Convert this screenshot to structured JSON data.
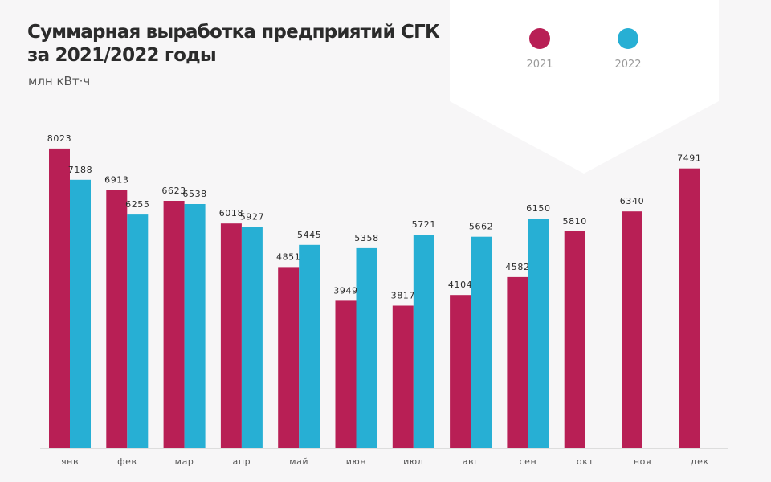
{
  "chart_data": {
    "type": "bar",
    "title": "Суммарная выработка предприятий СГК за 2021/2022 годы",
    "unit": "млн кВт·ч",
    "categories": [
      "янв",
      "фев",
      "мар",
      "апр",
      "май",
      "июн",
      "июл",
      "авг",
      "сен",
      "окт",
      "ноя",
      "дек"
    ],
    "series": [
      {
        "name": "2021",
        "color": "#b81f55",
        "values": [
          8023,
          6913,
          6623,
          6018,
          4851,
          3949,
          3817,
          4104,
          4582,
          5810,
          6340,
          7491
        ]
      },
      {
        "name": "2022",
        "color": "#27afd4",
        "values": [
          7188,
          6255,
          6538,
          5927,
          5445,
          5358,
          5721,
          5662,
          6150,
          null,
          null,
          null
        ]
      }
    ],
    "ylim": [
      0,
      8300
    ],
    "grid": false,
    "legend_position": "top-right"
  }
}
